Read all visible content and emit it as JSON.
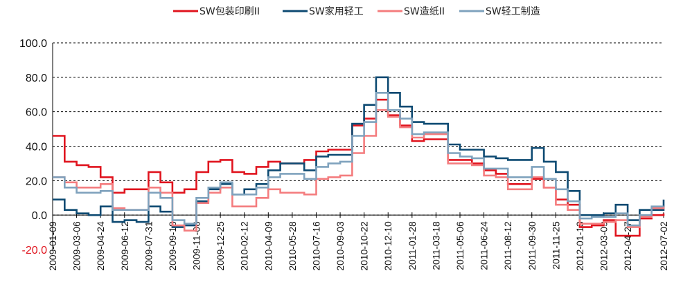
{
  "chart_data": {
    "type": "line",
    "title": "",
    "xlabel": "",
    "ylabel": "",
    "ylim": [
      -20,
      100
    ],
    "yticks": [
      {
        "value": 100,
        "label": "100.0",
        "color": "#111111"
      },
      {
        "value": 80,
        "label": "80.0",
        "color": "#111111"
      },
      {
        "value": 60,
        "label": "60.0",
        "color": "#111111"
      },
      {
        "value": 40,
        "label": "40.0",
        "color": "#111111"
      },
      {
        "value": 20,
        "label": "20.0",
        "color": "#111111"
      },
      {
        "value": 0,
        "label": "0.0",
        "color": "#111111"
      },
      {
        "value": -20,
        "label": "-20.0",
        "color": "#e0141e"
      }
    ],
    "grid": "horizontal dashed",
    "legend_position": "top",
    "x": [
      "2009-01-09",
      "2009-02-06",
      "2009-03-06",
      "2009-04-03",
      "2009-04-24",
      "2009-05-22",
      "2009-06-12",
      "2009-07-10",
      "2009-07-31",
      "2009-08-21",
      "2009-09-18",
      "2009-10-16",
      "2009-11-06",
      "2009-12-04",
      "2009-12-25",
      "2010-01-22",
      "2010-02-12",
      "2010-03-12",
      "2010-04-09",
      "2010-05-07",
      "2010-05-28",
      "2010-06-25",
      "2010-07-16",
      "2010-08-13",
      "2010-09-03",
      "2010-10-01",
      "2010-10-22",
      "2010-11-19",
      "2010-12-10",
      "2011-01-07",
      "2011-01-28",
      "2011-02-25",
      "2011-03-18",
      "2011-04-15",
      "2011-05-06",
      "2011-06-03",
      "2011-06-24",
      "2011-07-22",
      "2011-08-12",
      "2011-09-09",
      "2011-09-30",
      "2011-10-28",
      "2011-11-25",
      "2011-12-23",
      "2012-01-13",
      "2012-02-10",
      "2012-03-09",
      "2012-04-06",
      "2012-04-27",
      "2012-05-25",
      "2012-06-15",
      "2012-07-02"
    ],
    "x_tick_labels": [
      "2009-01-09",
      "2009-03-06",
      "2009-04-24",
      "2009-06-12",
      "2009-07-31",
      "2009-09-18",
      "2009-11-06",
      "2009-12-25",
      "2010-02-12",
      "2010-04-09",
      "2010-05-28",
      "2010-07-16",
      "2010-09-03",
      "2010-10-22",
      "2010-12-10",
      "2011-01-28",
      "2011-03-18",
      "2011-05-06",
      "2011-06-24",
      "2011-08-12",
      "2011-09-30",
      "2011-11-25",
      "2012-01-13",
      "2012-03-09",
      "2012-04-27",
      "2012-07-02"
    ],
    "series": [
      {
        "name": "SW包装印刷II",
        "color": "#e0141e",
        "values": [
          46,
          31,
          29,
          28,
          22,
          13,
          15,
          15,
          25,
          19,
          13,
          15,
          25,
          31,
          32,
          25,
          24,
          28,
          31,
          30,
          30,
          32,
          37,
          38,
          38,
          52,
          56,
          67,
          58,
          52,
          43,
          44,
          44,
          32,
          32,
          30,
          26,
          24,
          18,
          18,
          21,
          16,
          9,
          6,
          -7,
          -6,
          -3,
          -12,
          -12,
          -2,
          0,
          1
        ]
      },
      {
        "name": "SW家用轻工",
        "color": "#0d4a72",
        "values": [
          9,
          3,
          1,
          0,
          5,
          -4,
          -3,
          -4,
          5,
          2,
          -7,
          -6,
          8,
          15,
          18,
          12,
          15,
          18,
          26,
          30,
          30,
          26,
          34,
          35,
          35,
          53,
          64,
          80,
          71,
          63,
          54,
          53,
          53,
          41,
          38,
          38,
          34,
          33,
          32,
          32,
          39,
          31,
          25,
          14,
          0,
          0,
          1,
          6,
          -3,
          3,
          3,
          9
        ]
      },
      {
        "name": "SW造纸II",
        "color": "#f47c7e",
        "values": [
          22,
          19,
          16,
          16,
          18,
          4,
          3,
          3,
          16,
          13,
          -6,
          -9,
          7,
          13,
          16,
          5,
          5,
          10,
          15,
          13,
          13,
          12,
          21,
          22,
          23,
          36,
          46,
          61,
          57,
          51,
          45,
          47,
          47,
          30,
          30,
          29,
          23,
          22,
          15,
          15,
          22,
          16,
          6,
          3,
          -5,
          -5,
          -4,
          -3,
          -7,
          -1,
          4,
          5
        ]
      },
      {
        "name": "SW轻工制造",
        "color": "#7fa2bd",
        "values": [
          22,
          16,
          13,
          13,
          14,
          3,
          3,
          3,
          13,
          10,
          -3,
          -5,
          10,
          16,
          19,
          12,
          12,
          16,
          22,
          24,
          24,
          21,
          28,
          30,
          31,
          46,
          54,
          71,
          61,
          56,
          47,
          48,
          48,
          36,
          34,
          33,
          27,
          27,
          22,
          22,
          28,
          21,
          15,
          8,
          -2,
          -1,
          -1,
          1,
          -6,
          0,
          5,
          5
        ]
      }
    ]
  }
}
